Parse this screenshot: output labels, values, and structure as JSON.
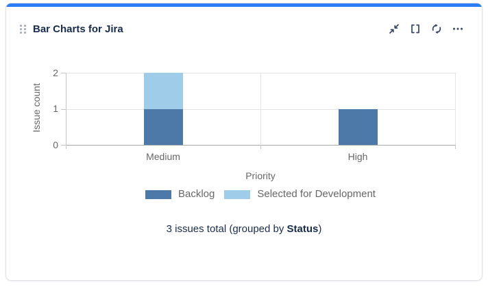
{
  "card": {
    "title": "Bar Charts for Jira",
    "header_icons": [
      "drag-handle",
      "collapse",
      "fullscreen",
      "refresh",
      "more"
    ],
    "footer": {
      "prefix": "3 issues total (grouped by ",
      "group_by": "Status",
      "suffix": ")"
    }
  },
  "colors": {
    "accent_top_bar": "#2b7df6",
    "card_border": "#dfe1e6",
    "title_text": "#172b4d",
    "icon": "#344563",
    "chart_text": "#666666",
    "gridline": "#e4e4e4",
    "baseline": "#aaaaaa"
  },
  "chart_data": {
    "type": "bar",
    "stacked": true,
    "title": "",
    "categories": [
      "Medium",
      "High"
    ],
    "series": [
      {
        "name": "Backlog",
        "color": "#4d79a9",
        "values": [
          1,
          1
        ]
      },
      {
        "name": "Selected for Development",
        "color": "#9fcce8",
        "values": [
          1,
          0
        ]
      }
    ],
    "xlabel": "Priority",
    "ylabel": "Issue count",
    "ylim": [
      0,
      2
    ],
    "y_ticks": [
      "0",
      "1",
      "2"
    ],
    "grid": "horizontal",
    "legend_position": "bottom"
  }
}
